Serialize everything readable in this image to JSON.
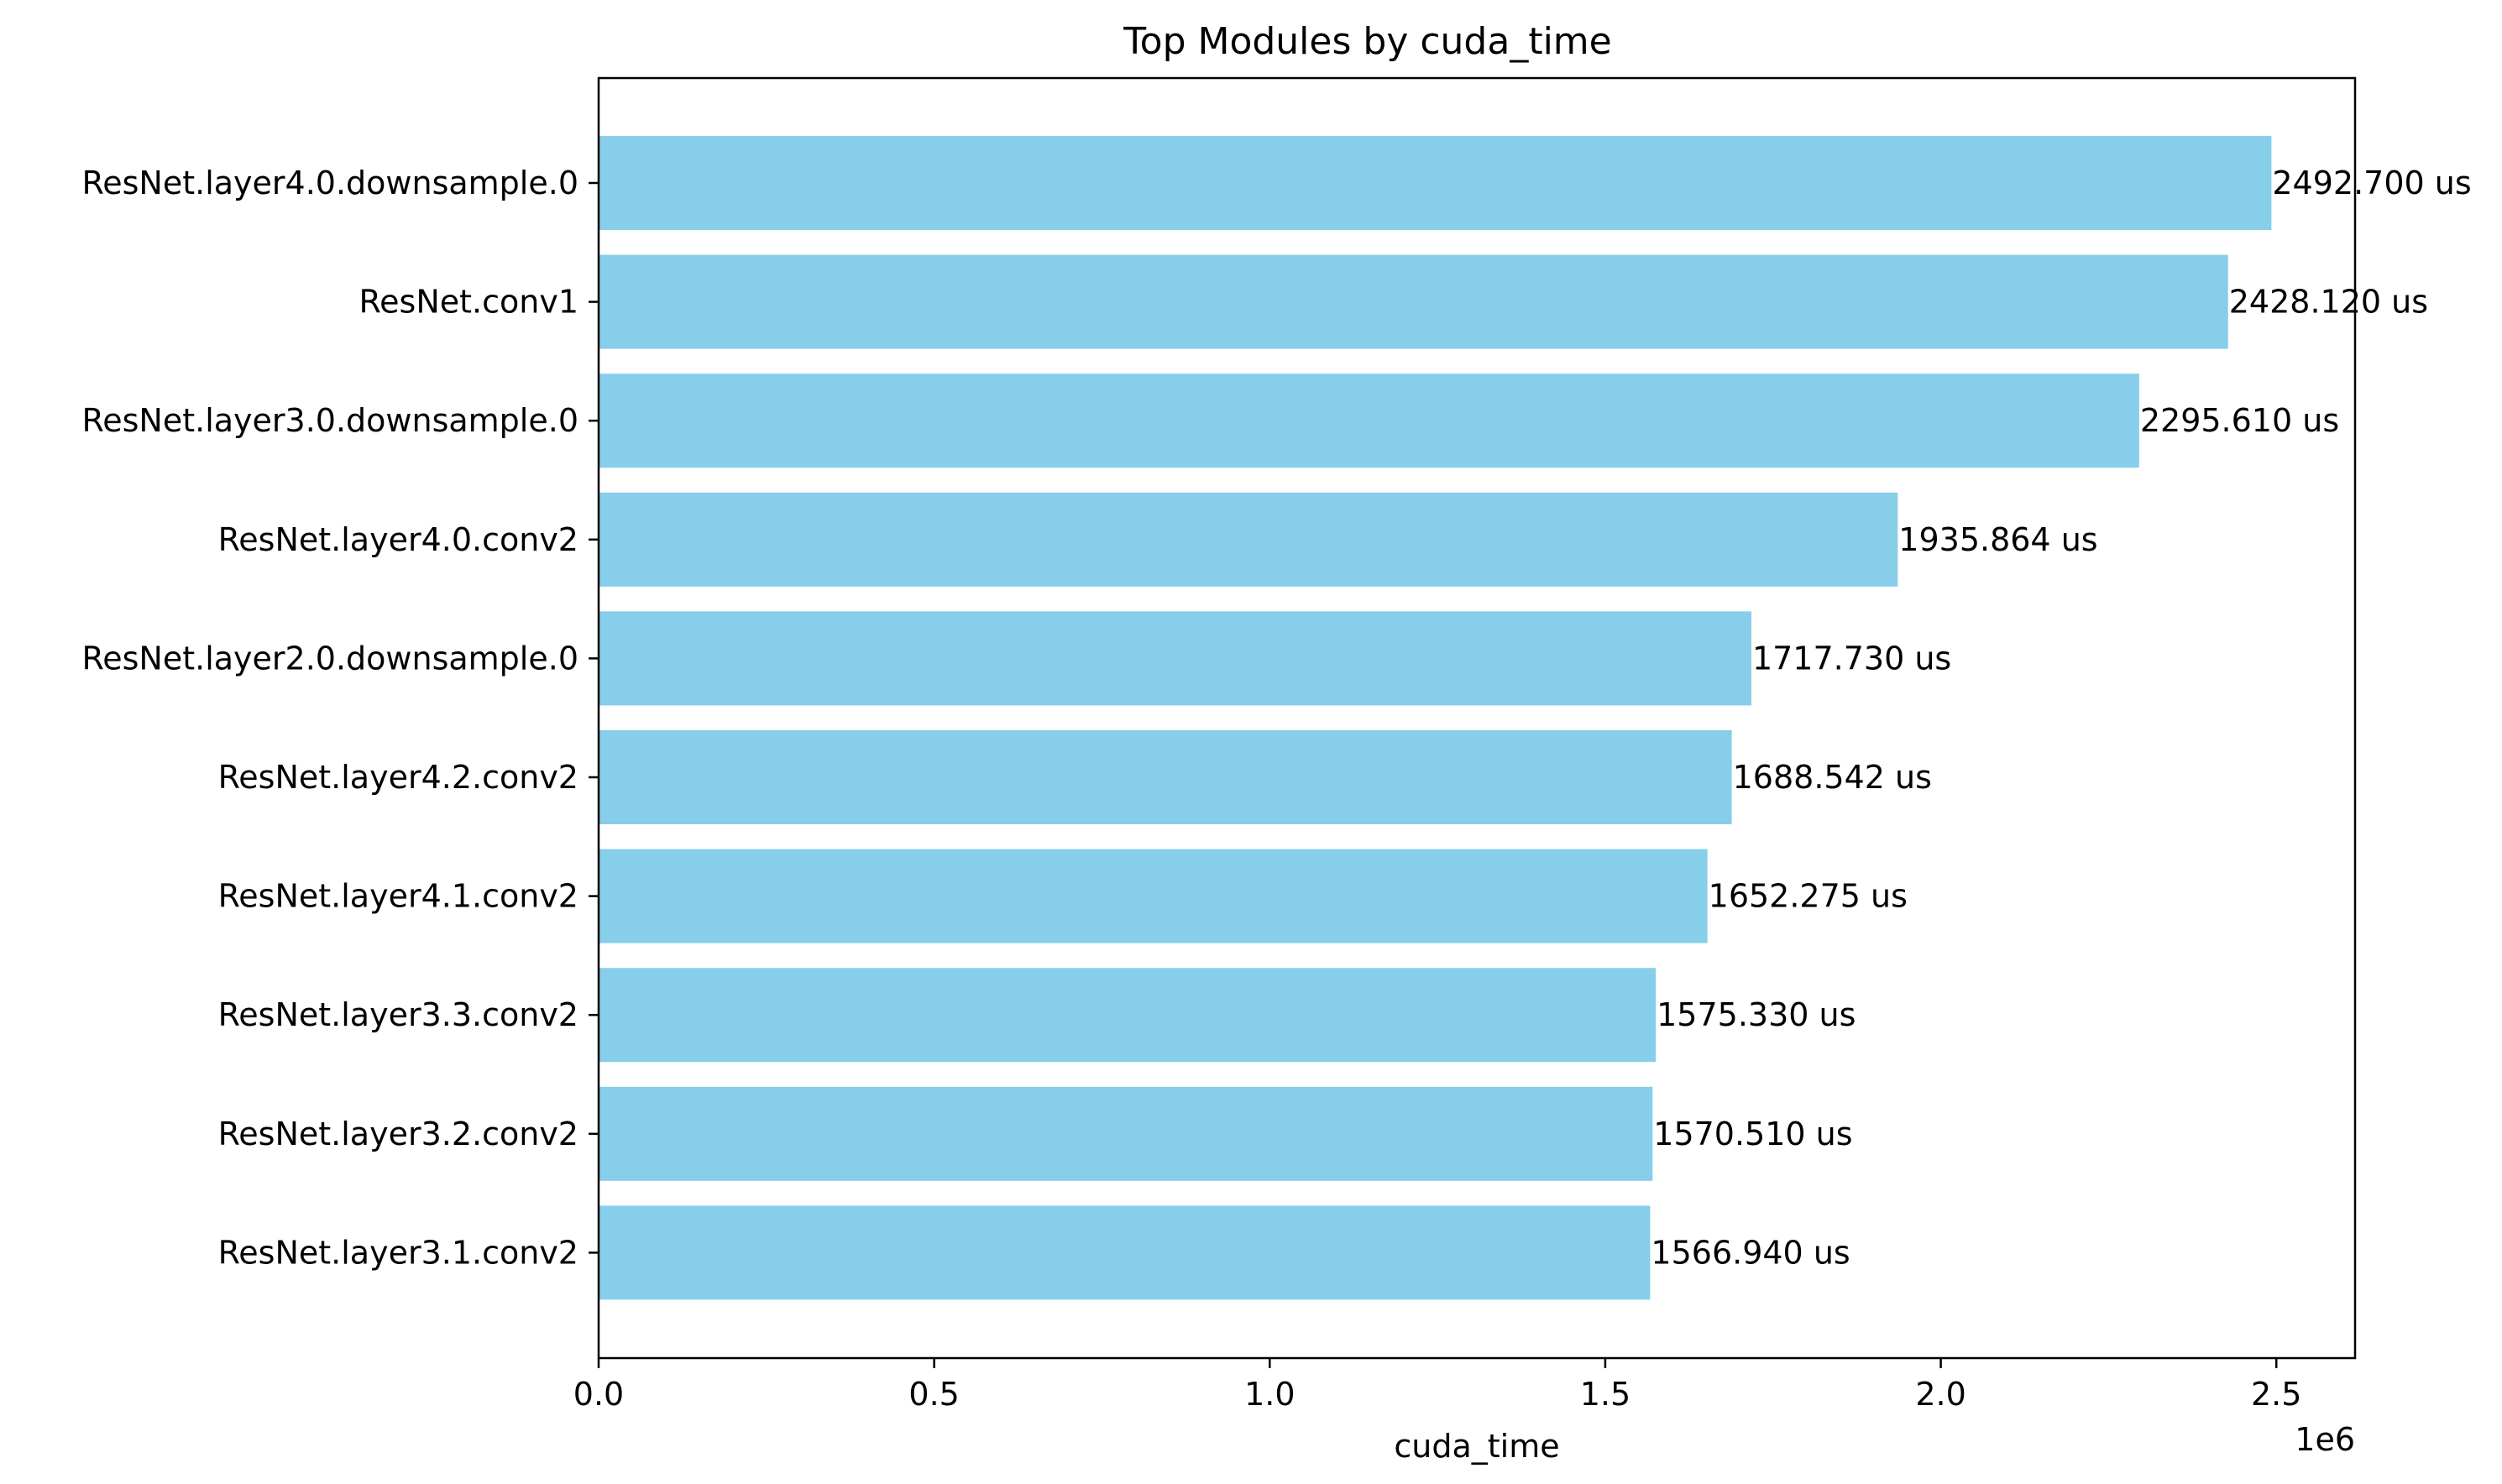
{
  "chart_data": {
    "type": "bar",
    "orientation": "horizontal",
    "title": "Top Modules by cuda_time",
    "xlabel": "cuda_time",
    "ylabel": "",
    "x_scale_label": "1e6",
    "xlim": [
      0,
      2617335
    ],
    "x_ticks": [
      0,
      500000,
      1000000,
      1500000,
      2000000,
      2500000
    ],
    "x_tick_labels": [
      "0.0",
      "0.5",
      "1.0",
      "1.5",
      "2.0",
      "2.5"
    ],
    "bar_color": "#87ceeb",
    "grid": false,
    "legend": "none",
    "categories": [
      "ResNet.layer4.0.downsample.0",
      "ResNet.conv1",
      "ResNet.layer3.0.downsample.0",
      "ResNet.layer4.0.conv2",
      "ResNet.layer2.0.downsample.0",
      "ResNet.layer4.2.conv2",
      "ResNet.layer4.1.conv2",
      "ResNet.layer3.3.conv2",
      "ResNet.layer3.2.conv2",
      "ResNet.layer3.1.conv2"
    ],
    "values": [
      2492700,
      2428120,
      2295610,
      1935864,
      1717730,
      1688542,
      1652275,
      1575330,
      1570510,
      1566940
    ],
    "value_labels": [
      "2492.700 us",
      "2428.120 us",
      "2295.610 us",
      "1935.864 us",
      "1717.730 us",
      "1688.542 us",
      "1652.275 us",
      "1575.330 us",
      "1570.510 us",
      "1566.940 us"
    ]
  }
}
